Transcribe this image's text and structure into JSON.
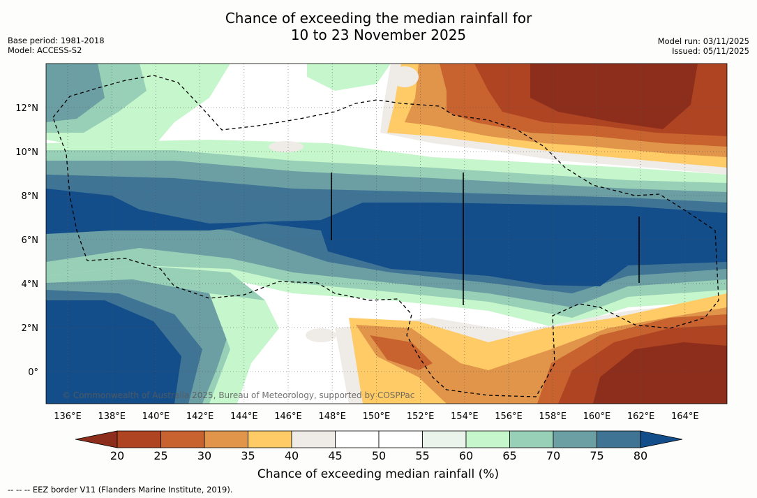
{
  "title": {
    "line1": "Chance of exceeding the median rainfall for",
    "line2": "10 to 23 November 2025"
  },
  "meta_left": {
    "base_period": "Base period: 1981-2018",
    "model": "Model: ACCESS-S2"
  },
  "meta_right": {
    "model_run": "Model run: 03/11/2025",
    "issued": "Issued: 05/11/2025"
  },
  "map": {
    "x_ticks": [
      "136°E",
      "138°E",
      "140°E",
      "142°E",
      "144°E",
      "146°E",
      "148°E",
      "150°E",
      "152°E",
      "154°E",
      "156°E",
      "158°E",
      "160°E",
      "162°E",
      "164°E"
    ],
    "y_ticks": [
      "12°N",
      "10°N",
      "8°N",
      "6°N",
      "4°N",
      "2°N",
      "0°"
    ],
    "copyright": "© Commonwealth of Australia 2025, Bureau of Meteorology, supported by COSPPac"
  },
  "colorbar": {
    "labels": [
      "20",
      "25",
      "30",
      "35",
      "40",
      "45",
      "50",
      "55",
      "60",
      "65",
      "70",
      "75",
      "80"
    ],
    "colors": [
      "#8d2e1c",
      "#ae4422",
      "#c8622f",
      "#e0954a",
      "#fecb67",
      "#efebe7",
      "#ffffff",
      "#ffffff",
      "#eaf4ea",
      "#c6f6cb",
      "#98cfb7",
      "#6b9fa3",
      "#3f7495",
      "#144e8a"
    ],
    "title": "Chance of exceeding median rainfall (%)"
  },
  "footnote": "--  --  -- EEZ border V11 (Flanders Marine Institute, 2019)."
}
